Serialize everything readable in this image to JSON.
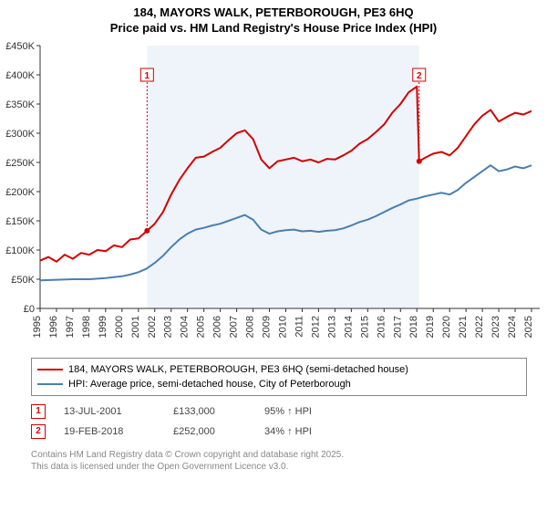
{
  "title_line1": "184, MAYORS WALK, PETERBOROUGH, PE3 6HQ",
  "title_line2": "Price paid vs. HM Land Registry's House Price Index (HPI)",
  "chart": {
    "type": "line",
    "background_color": "#ffffff",
    "plot_band_color": "#eef4fa",
    "plot_band_xstart": 2001.53,
    "plot_band_xend": 2018.14,
    "xlim": [
      1995,
      2025.5
    ],
    "ylim": [
      0,
      450000
    ],
    "ytick_step": 50000,
    "yticks": [
      "£0",
      "£50K",
      "£100K",
      "£150K",
      "£200K",
      "£250K",
      "£300K",
      "£350K",
      "£400K",
      "£450K"
    ],
    "xticks": [
      1995,
      1996,
      1997,
      1998,
      1999,
      2000,
      2001,
      2002,
      2003,
      2004,
      2005,
      2006,
      2007,
      2008,
      2009,
      2010,
      2011,
      2012,
      2013,
      2014,
      2015,
      2016,
      2017,
      2018,
      2019,
      2020,
      2021,
      2022,
      2023,
      2024,
      2025
    ],
    "series": [
      {
        "name": "property",
        "label": "184, MAYORS WALK, PETERBOROUGH, PE3 6HQ (semi-detached house)",
        "color": "#d40000",
        "line_width": 2,
        "points": [
          [
            1995,
            82000
          ],
          [
            1995.5,
            88000
          ],
          [
            1996,
            80000
          ],
          [
            1996.5,
            92000
          ],
          [
            1997,
            85000
          ],
          [
            1997.5,
            95000
          ],
          [
            1998,
            92000
          ],
          [
            1998.5,
            100000
          ],
          [
            1999,
            98000
          ],
          [
            1999.5,
            108000
          ],
          [
            2000,
            105000
          ],
          [
            2000.5,
            118000
          ],
          [
            2001,
            120000
          ],
          [
            2001.53,
            133000
          ],
          [
            2002,
            145000
          ],
          [
            2002.5,
            165000
          ],
          [
            2003,
            195000
          ],
          [
            2003.5,
            220000
          ],
          [
            2004,
            240000
          ],
          [
            2004.5,
            258000
          ],
          [
            2005,
            260000
          ],
          [
            2005.5,
            268000
          ],
          [
            2006,
            275000
          ],
          [
            2006.5,
            288000
          ],
          [
            2007,
            300000
          ],
          [
            2007.5,
            305000
          ],
          [
            2008,
            290000
          ],
          [
            2008.5,
            255000
          ],
          [
            2009,
            240000
          ],
          [
            2009.5,
            252000
          ],
          [
            2010,
            255000
          ],
          [
            2010.5,
            258000
          ],
          [
            2011,
            252000
          ],
          [
            2011.5,
            255000
          ],
          [
            2012,
            250000
          ],
          [
            2012.5,
            256000
          ],
          [
            2013,
            255000
          ],
          [
            2013.5,
            262000
          ],
          [
            2014,
            270000
          ],
          [
            2014.5,
            282000
          ],
          [
            2015,
            290000
          ],
          [
            2015.5,
            302000
          ],
          [
            2016,
            315000
          ],
          [
            2016.5,
            335000
          ],
          [
            2017,
            350000
          ],
          [
            2017.5,
            370000
          ],
          [
            2018,
            380000
          ],
          [
            2018.14,
            252000
          ],
          [
            2018.5,
            258000
          ],
          [
            2019,
            265000
          ],
          [
            2019.5,
            268000
          ],
          [
            2020,
            262000
          ],
          [
            2020.5,
            275000
          ],
          [
            2021,
            295000
          ],
          [
            2021.5,
            315000
          ],
          [
            2022,
            330000
          ],
          [
            2022.5,
            340000
          ],
          [
            2023,
            320000
          ],
          [
            2023.5,
            328000
          ],
          [
            2024,
            335000
          ],
          [
            2024.5,
            332000
          ],
          [
            2025,
            338000
          ]
        ]
      },
      {
        "name": "hpi",
        "label": "HPI: Average price, semi-detached house, City of Peterborough",
        "color": "#4a7fb0",
        "line_width": 2,
        "points": [
          [
            1995,
            48000
          ],
          [
            1996,
            49000
          ],
          [
            1997,
            50000
          ],
          [
            1998,
            50000
          ],
          [
            1999,
            52000
          ],
          [
            2000,
            55000
          ],
          [
            2000.5,
            58000
          ],
          [
            2001,
            62000
          ],
          [
            2001.5,
            68000
          ],
          [
            2002,
            78000
          ],
          [
            2002.5,
            90000
          ],
          [
            2003,
            105000
          ],
          [
            2003.5,
            118000
          ],
          [
            2004,
            128000
          ],
          [
            2004.5,
            135000
          ],
          [
            2005,
            138000
          ],
          [
            2005.5,
            142000
          ],
          [
            2006,
            145000
          ],
          [
            2006.5,
            150000
          ],
          [
            2007,
            155000
          ],
          [
            2007.5,
            160000
          ],
          [
            2008,
            152000
          ],
          [
            2008.5,
            135000
          ],
          [
            2009,
            128000
          ],
          [
            2009.5,
            132000
          ],
          [
            2010,
            134000
          ],
          [
            2010.5,
            135000
          ],
          [
            2011,
            132000
          ],
          [
            2011.5,
            133000
          ],
          [
            2012,
            131000
          ],
          [
            2012.5,
            133000
          ],
          [
            2013,
            134000
          ],
          [
            2013.5,
            137000
          ],
          [
            2014,
            142000
          ],
          [
            2014.5,
            148000
          ],
          [
            2015,
            152000
          ],
          [
            2015.5,
            158000
          ],
          [
            2016,
            165000
          ],
          [
            2016.5,
            172000
          ],
          [
            2017,
            178000
          ],
          [
            2017.5,
            185000
          ],
          [
            2018,
            188000
          ],
          [
            2018.5,
            192000
          ],
          [
            2019,
            195000
          ],
          [
            2019.5,
            198000
          ],
          [
            2020,
            195000
          ],
          [
            2020.5,
            203000
          ],
          [
            2021,
            215000
          ],
          [
            2021.5,
            225000
          ],
          [
            2022,
            235000
          ],
          [
            2022.5,
            245000
          ],
          [
            2023,
            235000
          ],
          [
            2023.5,
            238000
          ],
          [
            2024,
            243000
          ],
          [
            2024.5,
            240000
          ],
          [
            2025,
            245000
          ]
        ]
      }
    ],
    "markers": [
      {
        "id": "1",
        "x": 2001.53,
        "y": 133000,
        "box_y": 400000,
        "color": "#d40000"
      },
      {
        "id": "2",
        "x": 2018.14,
        "y": 252000,
        "box_y": 400000,
        "color": "#d40000"
      }
    ],
    "marker_line_color": "#d40000",
    "marker_line_dash": "2,2"
  },
  "legend": {
    "border_color": "#888888"
  },
  "sale_rows": [
    {
      "id": "1",
      "date": "13-JUL-2001",
      "price": "£133,000",
      "pct": "95% ↑ HPI",
      "color": "#d40000"
    },
    {
      "id": "2",
      "date": "19-FEB-2018",
      "price": "£252,000",
      "pct": "34% ↑ HPI",
      "color": "#d40000"
    }
  ],
  "footer_line1": "Contains HM Land Registry data © Crown copyright and database right 2025.",
  "footer_line2": "This data is licensed under the Open Government Licence v3.0."
}
